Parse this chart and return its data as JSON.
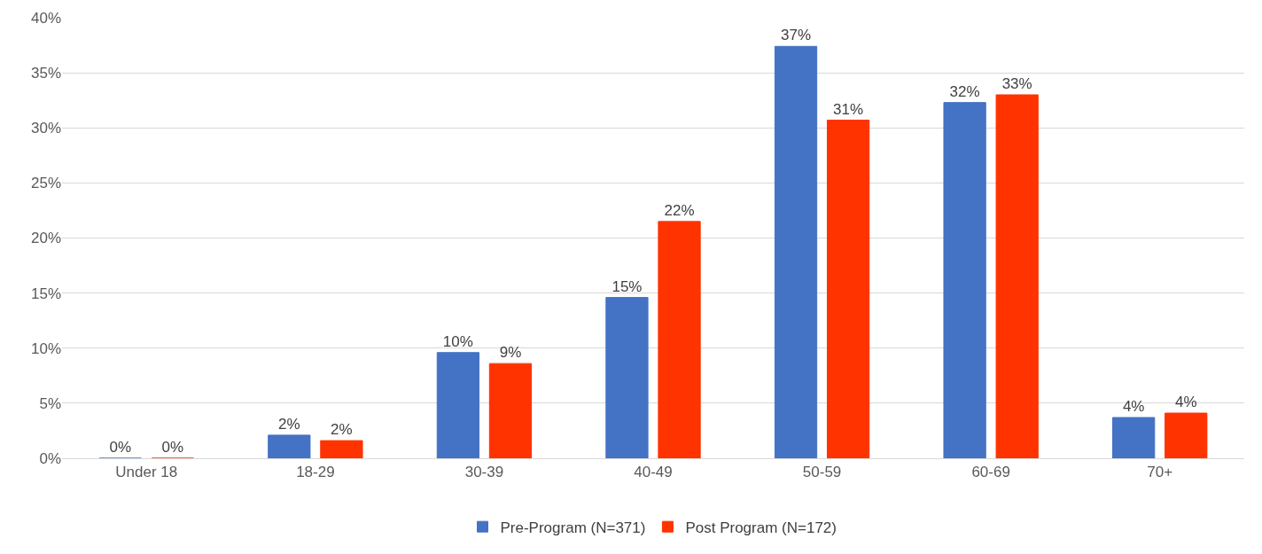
{
  "chart_data": {
    "type": "bar",
    "categories": [
      "Under 18",
      "18-29",
      "30-39",
      "40-49",
      "50-59",
      "60-69",
      "70+"
    ],
    "series": [
      {
        "name": "Pre-Program (N=371)",
        "color": "#4472c4",
        "values": [
          0,
          2.1,
          9.6,
          14.6,
          37.4,
          32.3,
          3.7
        ],
        "value_labels": [
          "0%",
          "2%",
          "10%",
          "15%",
          "37%",
          "32%",
          "4%"
        ]
      },
      {
        "name": "Post Program (N=172)",
        "color": "#ff3300",
        "values": [
          0,
          1.6,
          8.6,
          21.5,
          30.7,
          33.0,
          4.1
        ],
        "value_labels": [
          "0%",
          "2%",
          "9%",
          "22%",
          "31%",
          "33%",
          "4%"
        ]
      }
    ],
    "ylim": [
      0,
      40
    ],
    "yticks": [
      {
        "value": 0,
        "label": "0%"
      },
      {
        "value": 5,
        "label": "5%"
      },
      {
        "value": 10,
        "label": "10%"
      },
      {
        "value": 15,
        "label": "15%"
      },
      {
        "value": 20,
        "label": "20%"
      },
      {
        "value": 25,
        "label": "25%"
      },
      {
        "value": 30,
        "label": "30%"
      },
      {
        "value": 35,
        "label": "35%"
      },
      {
        "value": 40,
        "label": "40%"
      }
    ],
    "grid": "y",
    "legend": "bottom"
  }
}
